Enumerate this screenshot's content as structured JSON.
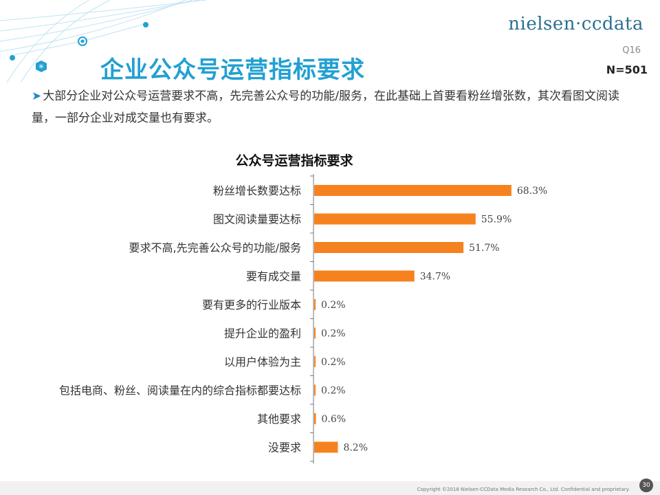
{
  "header": {
    "logo_text": "nielsen·ccdata",
    "question_code": "Q16",
    "sample_size": "N=501"
  },
  "page_title": "企业公众号运营指标要求",
  "summary": "大部分企业对公众号运营要求不高，先完善公众号的功能/服务，在此基础上首要看粉丝增张数，其次看图文阅读量，一部分企业对成交量也有要求。",
  "chart_data": {
    "type": "bar",
    "orientation": "horizontal",
    "title": "公众号运营指标要求",
    "categories": [
      "粉丝增长数要达标",
      "图文阅读量要达标",
      "要求不高,先完善公众号的功能/服务",
      "要有成交量",
      "要有更多的行业版本",
      "提升企业的盈利",
      "以用户体验为主",
      "包括电商、粉丝、阅读量在内的综合指标都要达标",
      "其他要求",
      "没要求"
    ],
    "values": [
      68.3,
      55.9,
      51.7,
      34.7,
      0.2,
      0.2,
      0.2,
      0.2,
      0.6,
      8.2
    ],
    "value_labels": [
      "68.3%",
      "55.9%",
      "51.7%",
      "34.7%",
      "0.2%",
      "0.2%",
      "0.2%",
      "0.2%",
      "0.6%",
      "8.2%"
    ],
    "xlim": [
      0,
      100
    ],
    "grid": false,
    "legend": "none",
    "bar_color": "#f5821f"
  },
  "footer": {
    "copyright": "Copyright ©2018  Nielsen-CCData Media Research Co., Ltd. Confidential and proprietary.",
    "page_number": "30"
  }
}
